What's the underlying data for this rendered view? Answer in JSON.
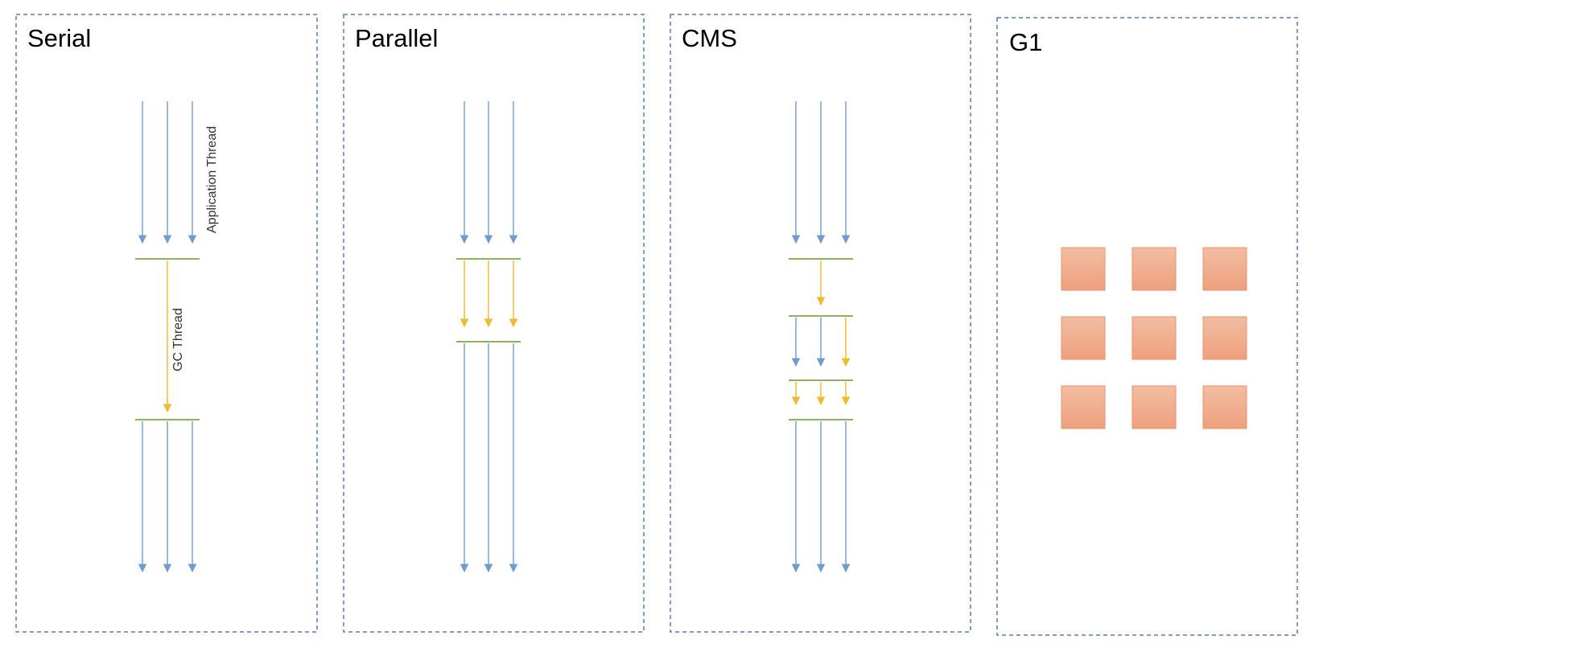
{
  "panels": [
    {
      "id": "serial",
      "title": "Serial"
    },
    {
      "id": "parallel",
      "title": "Parallel"
    },
    {
      "id": "cms",
      "title": "CMS"
    },
    {
      "id": "g1",
      "title": "G1"
    }
  ],
  "labels": {
    "application_thread": "Application Thread",
    "gc_thread": "GC Thread"
  },
  "colors": {
    "panel_border": "#5a7fb0",
    "application_thread": "#7aa1d2",
    "gc_thread": "#f2bd35",
    "safepoint": "#8db45a",
    "region_fill": "#f0aa88",
    "region_border": "#e9926b"
  }
}
